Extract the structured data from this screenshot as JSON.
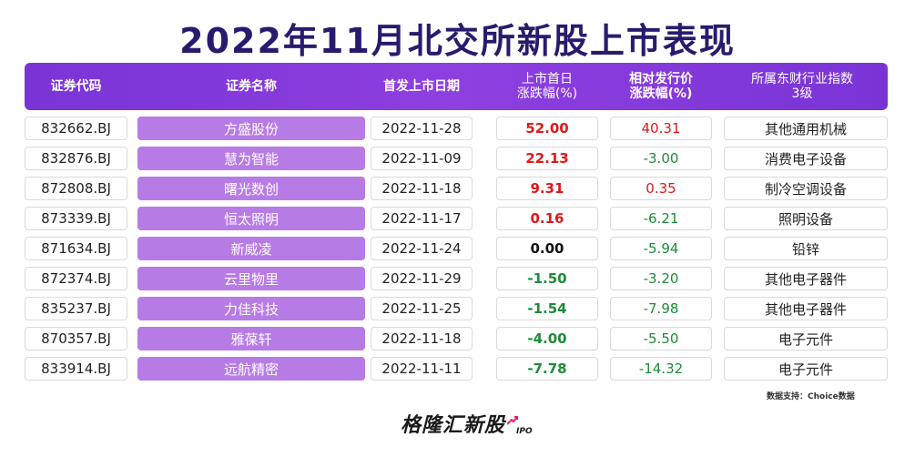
{
  "title": "2022年11月北交所新股上市表现",
  "headers": {
    "code": "证券代码",
    "name": "证券名称",
    "date": "首发上市日期",
    "first_day_line1": "上市首日",
    "first_day_line2": "涨跌幅(%)",
    "rel_line1": "相对发行价",
    "rel_line2": "涨跌幅(%)",
    "industry_line1": "所属东财行业指数",
    "industry_line2": "3级"
  },
  "rows": [
    {
      "code": "832662.BJ",
      "name": "方盛股份",
      "date": "2022-11-28",
      "first_day": "52.00",
      "first_trend": "up",
      "rel": "40.31",
      "rel_trend": "up",
      "industry": "其他通用机械"
    },
    {
      "code": "832876.BJ",
      "name": "慧为智能",
      "date": "2022-11-09",
      "first_day": "22.13",
      "first_trend": "up",
      "rel": "-3.00",
      "rel_trend": "down",
      "industry": "消费电子设备"
    },
    {
      "code": "872808.BJ",
      "name": "曙光数创",
      "date": "2022-11-18",
      "first_day": "9.31",
      "first_trend": "up",
      "rel": "0.35",
      "rel_trend": "up",
      "industry": "制冷空调设备"
    },
    {
      "code": "873339.BJ",
      "name": "恒太照明",
      "date": "2022-11-17",
      "first_day": "0.16",
      "first_trend": "up",
      "rel": "-6.21",
      "rel_trend": "down",
      "industry": "照明设备"
    },
    {
      "code": "871634.BJ",
      "name": "新威凌",
      "date": "2022-11-24",
      "first_day": "0.00",
      "first_trend": "flat",
      "rel": "-5.94",
      "rel_trend": "down",
      "industry": "铅锌"
    },
    {
      "code": "872374.BJ",
      "name": "云里物里",
      "date": "2022-11-29",
      "first_day": "-1.50",
      "first_trend": "down",
      "rel": "-3.20",
      "rel_trend": "down",
      "industry": "其他电子器件"
    },
    {
      "code": "835237.BJ",
      "name": "力佳科技",
      "date": "2022-11-25",
      "first_day": "-1.54",
      "first_trend": "down",
      "rel": "-7.98",
      "rel_trend": "down",
      "industry": "其他电子器件"
    },
    {
      "code": "870357.BJ",
      "name": "雅葆轩",
      "date": "2022-11-18",
      "first_day": "-4.00",
      "first_trend": "down",
      "rel": "-5.50",
      "rel_trend": "down",
      "industry": "电子元件"
    },
    {
      "code": "833914.BJ",
      "name": "远航精密",
      "date": "2022-11-11",
      "first_day": "-7.78",
      "first_trend": "down",
      "rel": "-14.32",
      "rel_trend": "down",
      "industry": "电子元件"
    }
  ],
  "source": "数据支持：Choice数据",
  "logo": {
    "text": "格隆汇新股",
    "sub": "IPO",
    "icon": "trend-arrow-icon"
  },
  "colors": {
    "header": "#8a3ddd",
    "name_cell": "#b77be6",
    "up": "#e01818",
    "down": "#1e8a3a",
    "title": "#2a1a6e"
  }
}
